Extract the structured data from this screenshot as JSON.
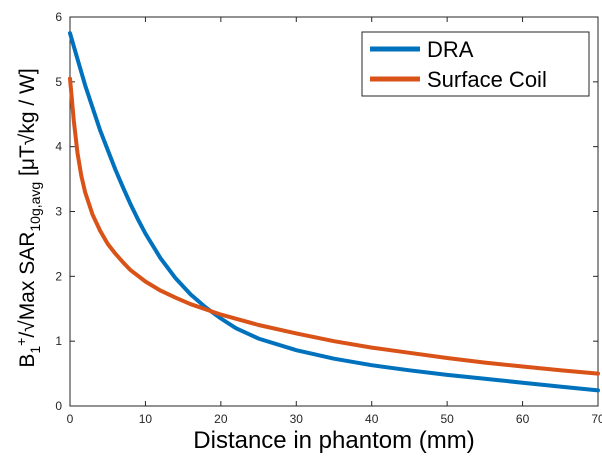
{
  "chart_data": {
    "type": "line",
    "xlabel": "Distance in phantom (mm)",
    "ylabel": {
      "b": "B",
      "b_sub": "1",
      "b_sup": "+",
      "mid": "/√Max SAR",
      "sar_sub": "10g,avg",
      "unit": " [μT√kg / W]"
    },
    "xlim": [
      0,
      70
    ],
    "ylim": [
      0,
      6
    ],
    "xticks": [
      "0",
      "10",
      "20",
      "30",
      "40",
      "50",
      "60",
      "70"
    ],
    "yticks": [
      "0",
      "1",
      "2",
      "3",
      "4",
      "5",
      "6"
    ],
    "grid": false,
    "legend_position": "top-right",
    "series": [
      {
        "name": "DRA",
        "color": "#0072BD",
        "x": [
          0,
          1,
          2,
          3,
          4,
          5,
          6,
          7,
          8,
          9,
          10,
          12,
          14,
          16,
          18,
          20,
          22,
          25,
          30,
          35,
          40,
          45,
          50,
          55,
          60,
          65,
          70
        ],
        "y": [
          5.75,
          5.35,
          4.95,
          4.6,
          4.25,
          3.95,
          3.65,
          3.38,
          3.12,
          2.88,
          2.66,
          2.28,
          1.97,
          1.72,
          1.52,
          1.35,
          1.2,
          1.04,
          0.86,
          0.73,
          0.63,
          0.55,
          0.48,
          0.42,
          0.36,
          0.3,
          0.24
        ]
      },
      {
        "name": "Surface Coil",
        "color": "#D95319",
        "x": [
          0,
          0.5,
          1,
          1.5,
          2,
          3,
          4,
          5,
          6,
          7,
          8,
          10,
          12,
          14,
          16,
          18,
          20,
          25,
          30,
          35,
          40,
          45,
          50,
          55,
          60,
          65,
          70
        ],
        "y": [
          5.05,
          4.4,
          3.9,
          3.55,
          3.3,
          2.95,
          2.7,
          2.5,
          2.35,
          2.22,
          2.1,
          1.92,
          1.78,
          1.67,
          1.57,
          1.49,
          1.41,
          1.25,
          1.12,
          1.0,
          0.9,
          0.82,
          0.74,
          0.67,
          0.61,
          0.55,
          0.5
        ]
      }
    ]
  }
}
